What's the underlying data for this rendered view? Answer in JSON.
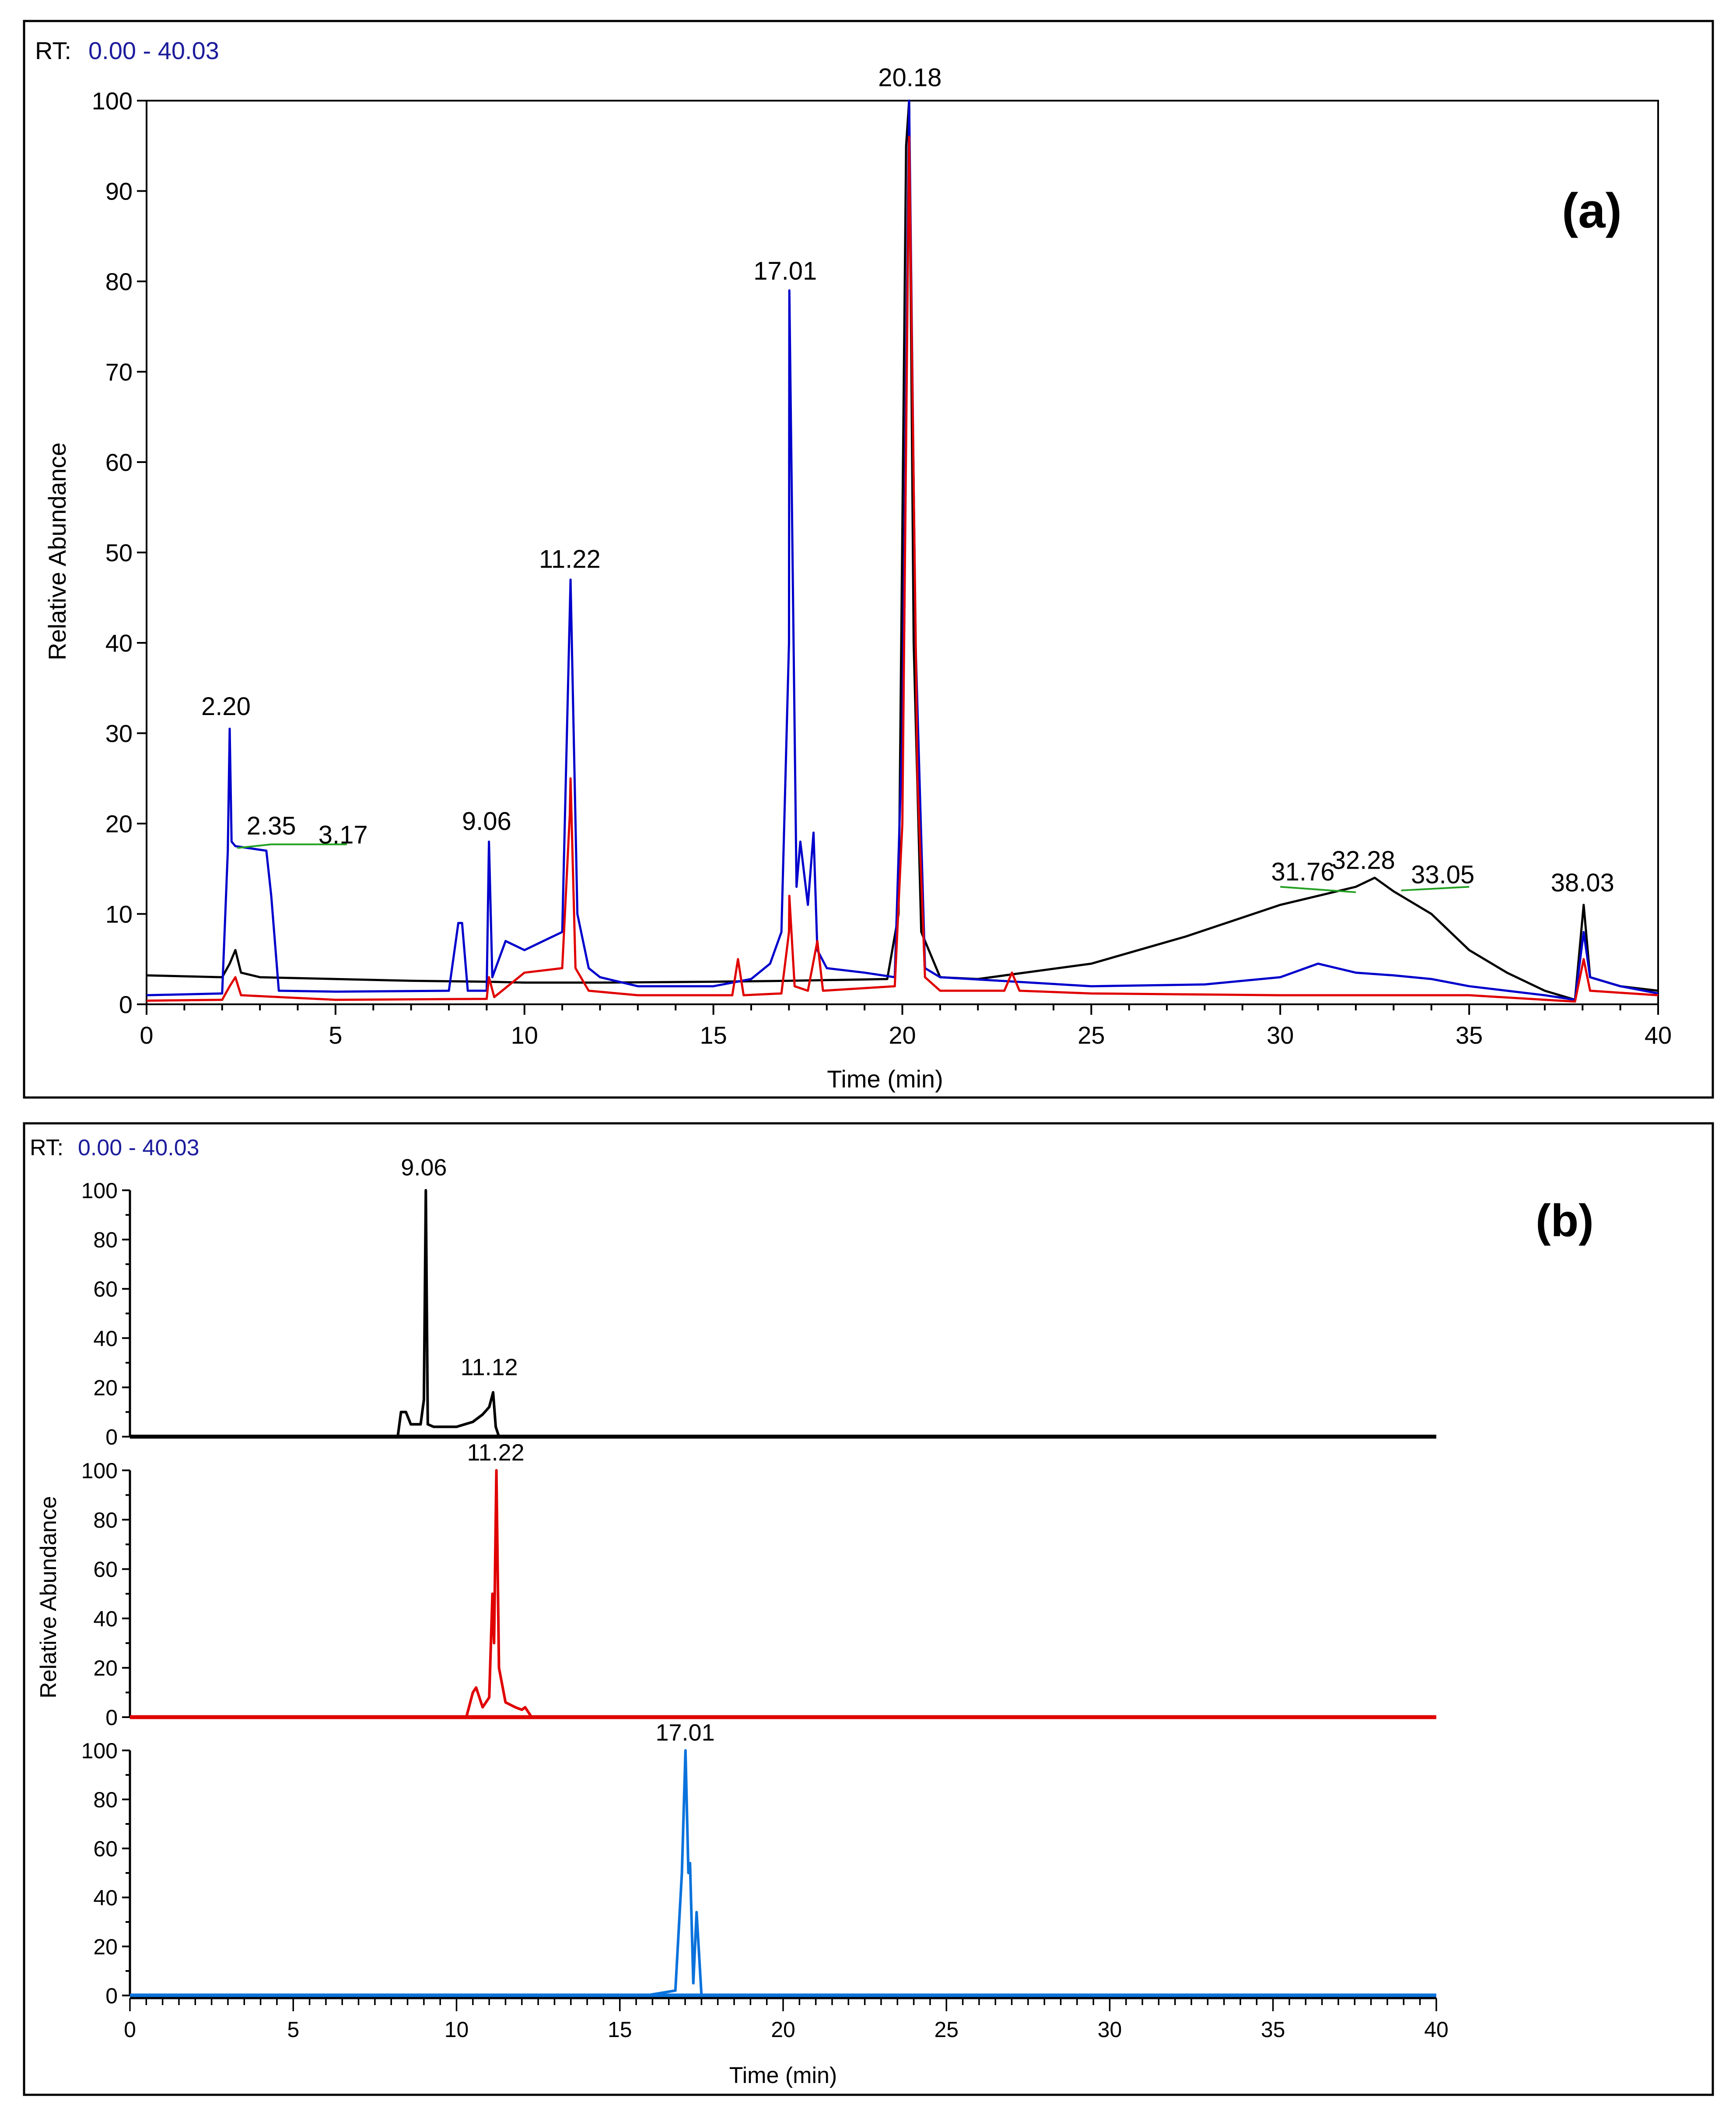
{
  "panel_a": {
    "rt_label": "RT:",
    "rt_range": "0.00 - 40.03",
    "panel_label": "(a)",
    "peak_labels_note": "labels printed above peaks"
  },
  "panel_b": {
    "rt_label": "RT:",
    "rt_range": "0.00 - 40.03",
    "panel_label": "(b)"
  },
  "colors": {
    "black_trace": "#000000",
    "blue_trace": "#0000cc",
    "red_trace": "#e00000",
    "light_blue_trace": "#0a72dc",
    "green_marker": "#23a023",
    "rt_value": "#1c1c9c"
  },
  "chart_data": [
    {
      "type": "line",
      "title": "(a)",
      "xlabel": "Time (min)",
      "ylabel": "Relative Abundance",
      "xlim": [
        0,
        40
      ],
      "ylim": [
        0,
        100
      ],
      "xticks": [
        0,
        5,
        10,
        15,
        20,
        25,
        30,
        35,
        40
      ],
      "yticks": [
        0,
        10,
        20,
        30,
        40,
        50,
        60,
        70,
        80,
        90,
        100
      ],
      "series": [
        {
          "name": "black",
          "color": "#000000",
          "x": [
            0,
            2.0,
            2.2,
            2.35,
            2.5,
            3.0,
            5.0,
            7.0,
            9.0,
            10.0,
            12.0,
            15.0,
            17.0,
            19.6,
            19.9,
            20.1,
            20.18,
            20.3,
            20.5,
            21.0,
            22.0,
            25.0,
            27.5,
            30.0,
            31.0,
            32.0,
            32.5,
            33.0,
            34.0,
            35.0,
            36.0,
            37.0,
            37.8,
            38.03,
            38.2,
            39.0,
            40.0
          ],
          "y": [
            3.2,
            3.0,
            4.5,
            6.0,
            3.5,
            3.0,
            2.8,
            2.6,
            2.5,
            2.4,
            2.4,
            2.5,
            2.6,
            2.8,
            10.0,
            95.0,
            100.0,
            40.0,
            8.0,
            3.0,
            2.8,
            4.5,
            7.5,
            11.0,
            12.0,
            13.0,
            14.0,
            12.5,
            10.0,
            6.0,
            3.5,
            1.5,
            0.5,
            11.0,
            3.0,
            2.0,
            1.5
          ]
        },
        {
          "name": "blue",
          "color": "#0000cc",
          "x": [
            0,
            2.0,
            2.15,
            2.2,
            2.25,
            2.35,
            3.17,
            3.3,
            3.5,
            5.0,
            8.0,
            8.25,
            8.35,
            8.5,
            9.0,
            9.06,
            9.15,
            9.5,
            10.0,
            10.5,
            11.0,
            11.22,
            11.4,
            11.7,
            12.0,
            13.0,
            15.0,
            16.0,
            16.5,
            16.8,
            17.0,
            17.01,
            17.2,
            17.3,
            17.5,
            17.65,
            17.75,
            18.0,
            19.0,
            19.8,
            20.0,
            20.18,
            20.35,
            20.6,
            21.0,
            25.0,
            28.0,
            30.0,
            31.0,
            32.0,
            33.0,
            34.0,
            35.0,
            36.0,
            37.0,
            37.8,
            38.03,
            38.2,
            39.0,
            40.0
          ],
          "y": [
            1.0,
            1.2,
            17.0,
            30.5,
            18.0,
            17.5,
            17.0,
            12.0,
            1.5,
            1.4,
            1.5,
            9.0,
            9.0,
            1.5,
            1.5,
            18.0,
            3.0,
            7.0,
            6.0,
            7.0,
            8.0,
            47.0,
            10.0,
            4.0,
            3.0,
            2.0,
            2.0,
            2.8,
            4.5,
            8.0,
            40.0,
            79.0,
            13.0,
            18.0,
            11.0,
            19.0,
            6.0,
            4.0,
            3.5,
            3.0,
            30.0,
            100.0,
            40.0,
            4.0,
            3.0,
            2.0,
            2.2,
            3.0,
            4.5,
            3.5,
            3.2,
            2.8,
            2.0,
            1.5,
            1.0,
            0.5,
            8.0,
            3.0,
            2.0,
            1.2
          ]
        },
        {
          "name": "red",
          "color": "#e00000",
          "x": [
            0,
            2.0,
            2.2,
            2.35,
            2.5,
            5.0,
            9.0,
            9.06,
            9.2,
            10.0,
            11.0,
            11.2,
            11.22,
            11.35,
            11.7,
            13.0,
            15.5,
            15.65,
            15.8,
            16.8,
            17.0,
            17.01,
            17.15,
            17.5,
            17.75,
            17.9,
            19.8,
            20.0,
            20.18,
            20.4,
            20.6,
            21.0,
            22.7,
            22.9,
            23.1,
            25.0,
            30.0,
            35.0,
            37.8,
            38.03,
            38.2,
            40.0
          ],
          "y": [
            0.4,
            0.5,
            2.0,
            3.0,
            1.0,
            0.5,
            0.6,
            3.0,
            0.8,
            3.5,
            4.0,
            21.0,
            25.0,
            4.0,
            1.5,
            1.0,
            1.0,
            5.0,
            1.0,
            1.2,
            8.0,
            12.0,
            2.0,
            1.5,
            7.0,
            1.5,
            2.0,
            20.0,
            96.0,
            25.0,
            3.0,
            1.5,
            1.5,
            3.5,
            1.5,
            1.2,
            1.0,
            1.0,
            0.3,
            5.0,
            1.5,
            1.0
          ]
        }
      ],
      "peak_labels": [
        {
          "text": "2.20",
          "x": 2.2,
          "y": 30.5
        },
        {
          "text": "2.35",
          "x": 2.35,
          "y": 17.5
        },
        {
          "text": "3.17",
          "x": 3.17,
          "y": 17.0
        },
        {
          "text": "9.06",
          "x": 9.06,
          "y": 18.0
        },
        {
          "text": "11.22",
          "x": 11.22,
          "y": 47.0
        },
        {
          "text": "17.01",
          "x": 17.01,
          "y": 79.0
        },
        {
          "text": "20.18",
          "x": 20.18,
          "y": 100.0
        },
        {
          "text": "31.76",
          "x": 31.76,
          "y": 12.0
        },
        {
          "text": "32.28",
          "x": 32.28,
          "y": 13.0
        },
        {
          "text": "33.05",
          "x": 33.05,
          "y": 12.5
        },
        {
          "text": "38.03",
          "x": 38.03,
          "y": 11.0
        }
      ]
    },
    {
      "type": "line",
      "title": "(b)",
      "xlabel": "Time (min)",
      "ylabel": "Relative Abundance",
      "xlim": [
        0,
        40
      ],
      "ylim": [
        0,
        100
      ],
      "xticks": [
        0,
        5,
        10,
        15,
        20,
        25,
        30,
        35,
        40
      ],
      "yticks": [
        0,
        20,
        40,
        60,
        80,
        100
      ],
      "subplots": [
        {
          "name": "black",
          "color": "#000000",
          "x": [
            0,
            8.2,
            8.3,
            8.45,
            8.6,
            8.9,
            9.0,
            9.06,
            9.12,
            9.3,
            10.0,
            10.5,
            10.8,
            11.0,
            11.12,
            11.2,
            11.3,
            40.0
          ],
          "y": [
            0,
            0,
            10,
            10,
            5,
            5,
            15,
            100,
            5,
            4,
            4,
            6,
            9,
            12,
            18,
            4,
            0,
            0
          ],
          "peak_labels": [
            {
              "text": "9.06",
              "x": 9.06,
              "y": 100
            },
            {
              "text": "11.12",
              "x": 11.12,
              "y": 18
            }
          ]
        },
        {
          "name": "red",
          "color": "#e00000",
          "x": [
            0,
            10.3,
            10.5,
            10.6,
            10.8,
            11.0,
            11.1,
            11.15,
            11.22,
            11.3,
            11.5,
            11.8,
            12.0,
            12.1,
            12.3,
            40.0
          ],
          "y": [
            0,
            0,
            10,
            12,
            4,
            8,
            50,
            30,
            100,
            20,
            6,
            4,
            3,
            4,
            0,
            0
          ],
          "peak_labels": [
            {
              "text": "11.22",
              "x": 11.22,
              "y": 100
            }
          ]
        },
        {
          "name": "blue",
          "color": "#0a72dc",
          "x": [
            0,
            15.8,
            16.7,
            16.9,
            17.01,
            17.1,
            17.15,
            17.25,
            17.35,
            17.5,
            40.0
          ],
          "y": [
            0,
            0,
            2,
            50,
            100,
            50,
            54,
            5,
            34,
            0,
            0
          ],
          "peak_labels": [
            {
              "text": "17.01",
              "x": 17.01,
              "y": 100
            }
          ]
        }
      ]
    }
  ]
}
